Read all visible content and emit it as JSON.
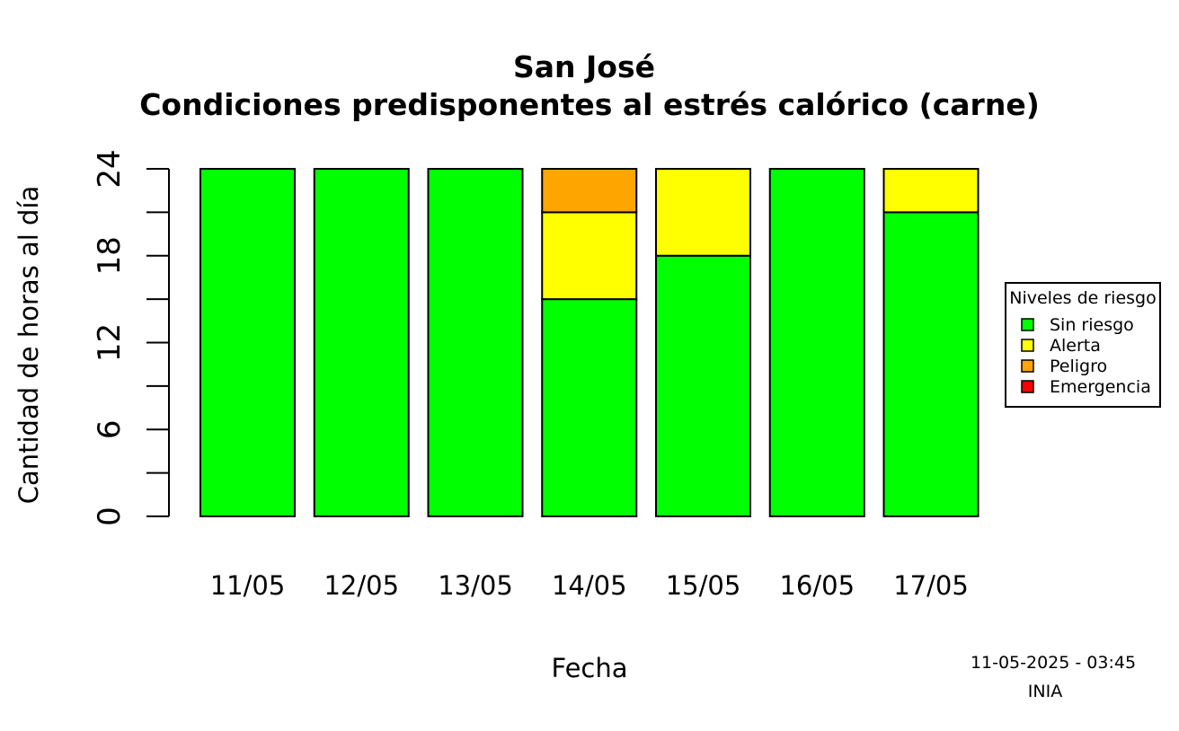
{
  "chart_data": {
    "type": "bar",
    "stacked": true,
    "title": "San José",
    "subtitle": "Condiciones predisponentes al estrés calórico (carne)",
    "xlabel": "Fecha",
    "ylabel": "Cantidad de horas al día",
    "ylim": [
      0,
      24
    ],
    "yticks": [
      0,
      6,
      12,
      18,
      24
    ],
    "ytick_labels": [
      "0",
      "6",
      "12",
      "18",
      "24"
    ],
    "yminor_ticks": [
      3,
      9,
      15,
      21
    ],
    "grid": false,
    "categories": [
      "11/05",
      "12/05",
      "13/05",
      "14/05",
      "15/05",
      "16/05",
      "17/05"
    ],
    "series": [
      {
        "name": "Sin riesgo",
        "color": "#00ff00",
        "values": [
          24,
          24,
          24,
          15,
          18,
          24,
          21
        ]
      },
      {
        "name": "Alerta",
        "color": "#ffff00",
        "values": [
          0,
          0,
          0,
          6,
          6,
          0,
          3
        ]
      },
      {
        "name": "Peligro",
        "color": "#ffa500",
        "values": [
          0,
          0,
          0,
          3,
          0,
          0,
          0
        ]
      },
      {
        "name": "Emergencia",
        "color": "#ff0000",
        "values": [
          0,
          0,
          0,
          0,
          0,
          0,
          0
        ]
      }
    ],
    "legend": {
      "title": "Niveles de riesgo",
      "placement": "right",
      "entries": [
        {
          "label": "Sin riesgo",
          "color": "#00ff00"
        },
        {
          "label": "Alerta",
          "color": "#ffff00"
        },
        {
          "label": "Peligro",
          "color": "#ffa500"
        },
        {
          "label": "Emergencia",
          "color": "#ff0000"
        }
      ]
    }
  },
  "footer": {
    "timestamp": "11-05-2025 - 03:45",
    "source": "INIA"
  }
}
